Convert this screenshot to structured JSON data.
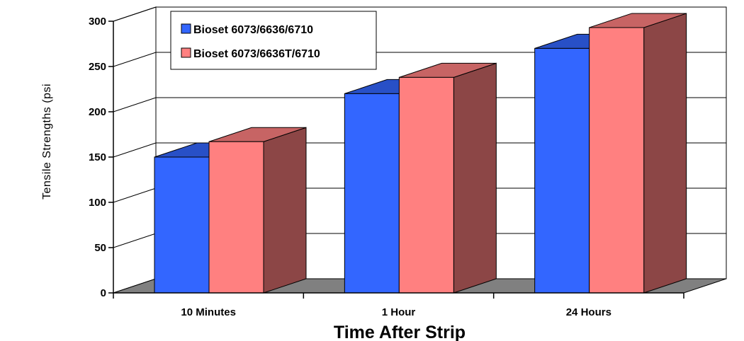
{
  "chart_data": {
    "type": "bar",
    "title": "",
    "xlabel": "Time After Strip",
    "ylabel": "Tensile Strengths (psi",
    "categories": [
      "10 Minutes",
      "1 Hour",
      "24 Hours"
    ],
    "series": [
      {
        "name": "Bioset 6073/6636/6710",
        "values": [
          150,
          220,
          270
        ],
        "color": "#3366ff"
      },
      {
        "name": "Bioset 6073/6636T/6710",
        "values": [
          167,
          238,
          293
        ],
        "color": "#ff8080"
      }
    ],
    "ylim": [
      0,
      300
    ],
    "yticks": [
      0,
      50,
      100,
      150,
      200,
      250,
      300
    ],
    "grid": true,
    "legend_position": "top-left",
    "three_d": true
  }
}
